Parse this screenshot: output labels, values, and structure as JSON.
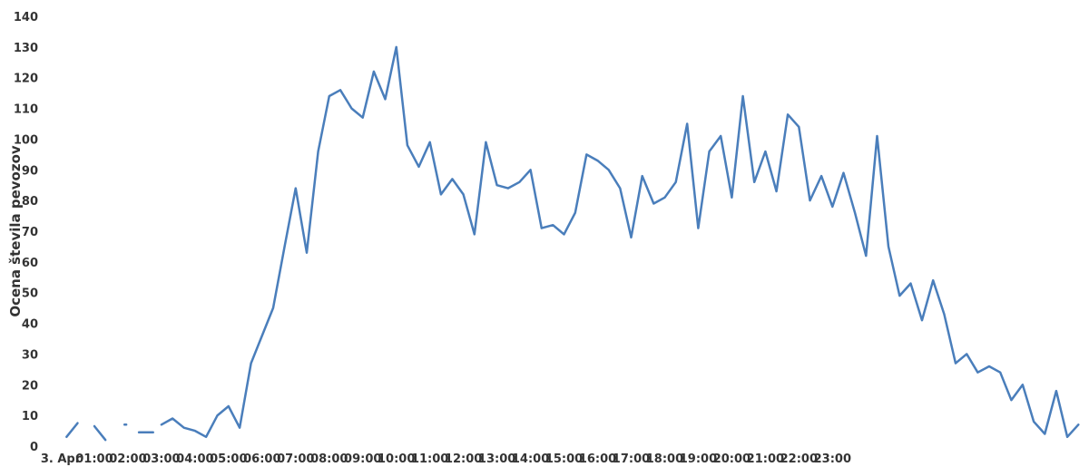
{
  "chart_data": {
    "type": "line",
    "ylabel": "Ocena števila pevozov",
    "xlabel": "",
    "ylim": [
      0,
      140
    ],
    "yticks": [
      0,
      10,
      20,
      30,
      40,
      50,
      60,
      70,
      80,
      90,
      100,
      110,
      120,
      130,
      140
    ],
    "xticks": [
      "3. Apr",
      "01:00",
      "02:00",
      "03:00",
      "04:00",
      "05:00",
      "06:00",
      "07:00",
      "08:00",
      "09:00",
      "10:00",
      "11:00",
      "12:00",
      "13:00",
      "14:00",
      "15:00",
      "16:00",
      "17:00",
      "18:00",
      "19:00",
      "20:00",
      "21:00",
      "22:00",
      "23:00"
    ],
    "x_unit": "hours since 3. Apr 00:00",
    "grid": false,
    "legend": "none",
    "line_color": "#4a7ebb",
    "series": [
      {
        "segments": [
          [
            [
              0.17,
              3
            ],
            [
              0.5,
              7.5
            ]
          ],
          [
            [
              1.0,
              6.5
            ],
            [
              1.33,
              2
            ]
          ],
          [
            [
              1.9,
              7
            ],
            [
              1.95,
              7
            ]
          ],
          [
            [
              2.33,
              4.5
            ],
            [
              2.75,
              4.5
            ]
          ],
          [
            [
              3.0,
              7
            ],
            [
              3.33,
              9
            ],
            [
              3.67,
              6
            ],
            [
              4.0,
              5
            ],
            [
              4.33,
              3
            ],
            [
              4.67,
              10
            ],
            [
              5.0,
              13
            ],
            [
              5.33,
              6
            ],
            [
              5.67,
              27
            ],
            [
              6.0,
              36
            ],
            [
              6.33,
              45
            ],
            [
              6.67,
              65
            ],
            [
              7.0,
              84
            ],
            [
              7.33,
              63
            ],
            [
              7.67,
              96
            ],
            [
              8.0,
              114
            ],
            [
              8.33,
              116
            ],
            [
              8.67,
              110
            ],
            [
              9.0,
              107
            ],
            [
              9.33,
              122
            ],
            [
              9.67,
              113
            ],
            [
              10.0,
              130
            ],
            [
              10.33,
              98
            ],
            [
              10.67,
              91
            ],
            [
              11.0,
              99
            ],
            [
              11.33,
              82
            ],
            [
              11.67,
              87
            ],
            [
              12.0,
              82
            ],
            [
              12.33,
              69
            ],
            [
              12.67,
              99
            ],
            [
              13.0,
              85
            ],
            [
              13.33,
              84
            ],
            [
              13.67,
              86
            ],
            [
              14.0,
              90
            ],
            [
              14.33,
              71
            ],
            [
              14.67,
              72
            ],
            [
              15.0,
              69
            ],
            [
              15.33,
              76
            ],
            [
              15.67,
              95
            ],
            [
              16.0,
              93
            ],
            [
              16.33,
              90
            ],
            [
              16.67,
              84
            ],
            [
              17.0,
              68
            ],
            [
              17.33,
              88
            ],
            [
              17.67,
              79
            ],
            [
              18.0,
              81
            ],
            [
              18.33,
              86
            ],
            [
              18.67,
              105
            ],
            [
              19.0,
              71
            ],
            [
              19.33,
              96
            ],
            [
              19.67,
              101
            ],
            [
              20.0,
              81
            ],
            [
              20.33,
              114
            ],
            [
              20.67,
              86
            ],
            [
              21.0,
              96
            ],
            [
              21.33,
              83
            ],
            [
              21.67,
              108
            ],
            [
              22.0,
              104
            ],
            [
              22.33,
              80
            ],
            [
              22.67,
              88
            ],
            [
              23.0,
              78
            ],
            [
              23.33,
              89
            ],
            [
              23.67,
              76
            ],
            [
              24.0,
              62
            ],
            [
              24.33,
              101
            ],
            [
              24.67,
              65
            ],
            [
              25.0,
              49
            ],
            [
              25.33,
              53
            ],
            [
              25.67,
              41
            ],
            [
              26.0,
              54
            ],
            [
              26.33,
              43
            ],
            [
              26.67,
              27
            ],
            [
              27.0,
              30
            ],
            [
              27.33,
              24
            ],
            [
              27.67,
              26
            ],
            [
              28.0,
              24
            ],
            [
              28.33,
              15
            ],
            [
              28.67,
              20
            ],
            [
              29.0,
              8
            ],
            [
              29.33,
              4
            ],
            [
              29.67,
              18
            ],
            [
              30.0,
              3
            ],
            [
              30.33,
              7
            ]
          ]
        ]
      }
    ]
  }
}
